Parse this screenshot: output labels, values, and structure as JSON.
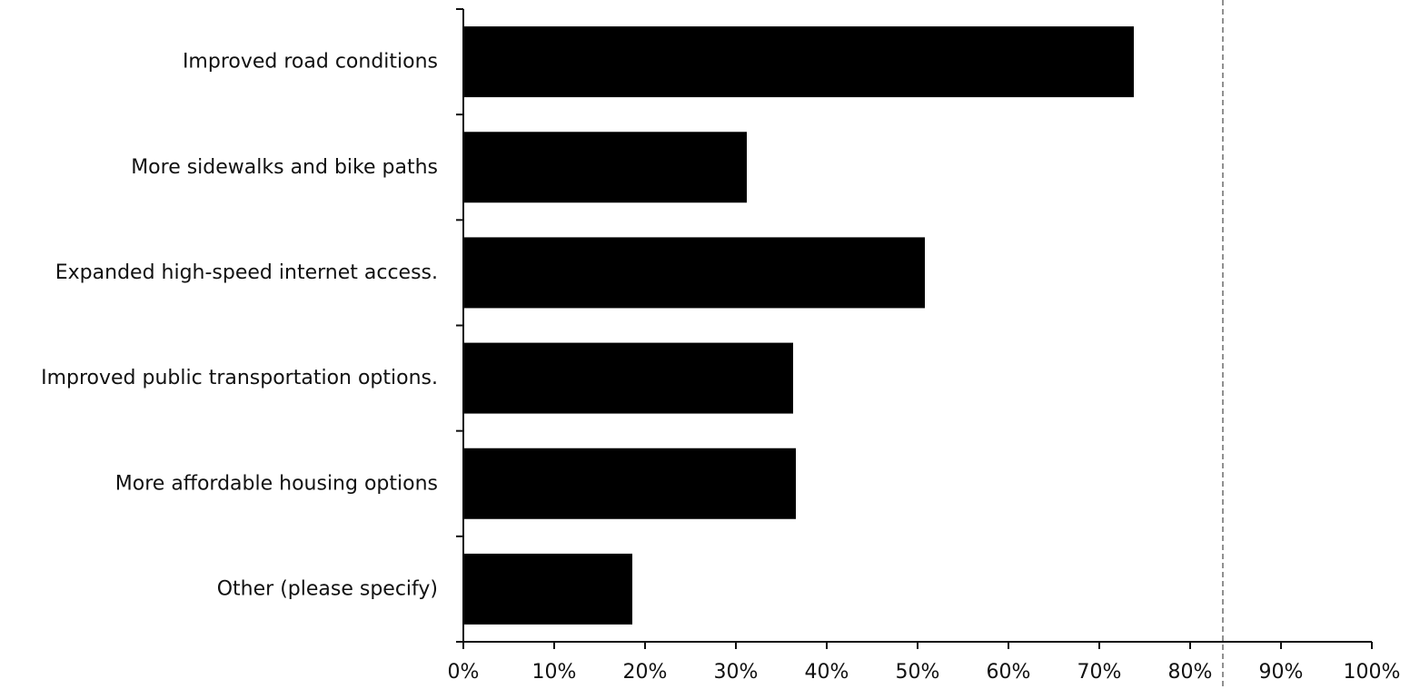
{
  "chart_data": {
    "type": "bar",
    "orientation": "horizontal",
    "title": "",
    "xlabel": "",
    "ylabel": "",
    "categories": [
      "Improved road conditions",
      "More sidewalks and bike paths",
      "Expanded high-speed internet access.",
      "Improved public transportation options.",
      "More affordable housing options",
      "Other (please specify)"
    ],
    "values": [
      73.8,
      31.2,
      50.8,
      36.3,
      36.6,
      18.6
    ],
    "xlim": [
      0,
      100
    ],
    "xticks": [
      0,
      10,
      20,
      30,
      40,
      50,
      60,
      70,
      80,
      90,
      100
    ],
    "xtick_labels": [
      "0%",
      "10%",
      "20%",
      "30%",
      "40%",
      "50%",
      "60%",
      "70%",
      "80%",
      "90%",
      "100%"
    ],
    "grid": false,
    "legend": "none",
    "bar_color": "#000000"
  }
}
